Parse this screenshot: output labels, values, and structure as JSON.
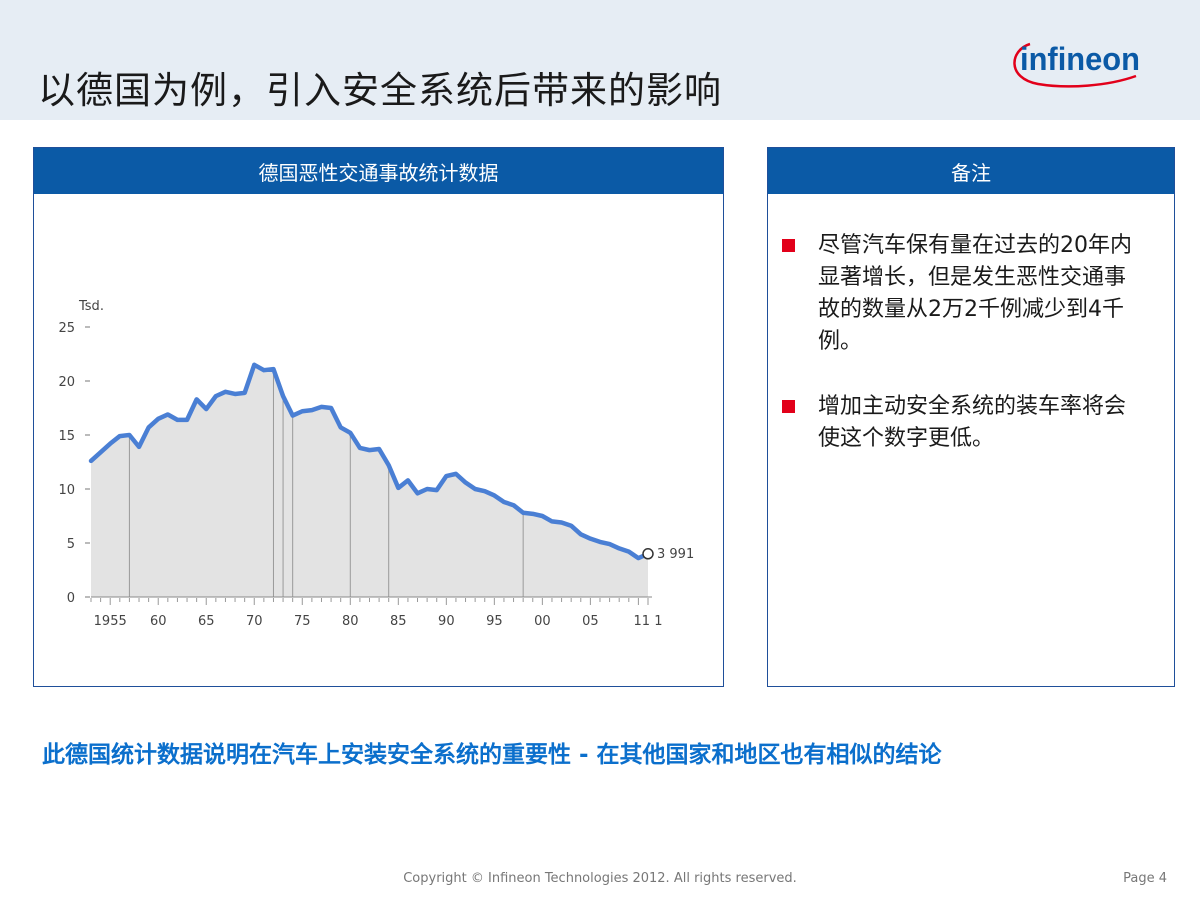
{
  "header": {
    "title": "以德国为例，引入安全系统后带来的影响"
  },
  "logo": {
    "text": "infineon",
    "color": "#0b5aa6",
    "accent": "#e2001a"
  },
  "left_panel": {
    "title": "德国恶性交通事故统计数据"
  },
  "right_panel": {
    "title": "备注",
    "notes": [
      "尽管汽车保有量在过去的20年内显著增长，但是发生恶性交通事故的数量从2万2千例减少到4千例。",
      "增加主动安全系统的装车率将会使这个数字更低。"
    ]
  },
  "conclusion": "此德国统计数据说明在汽车上安装安全系统的重要性 -  在其他国家和地区也有相似的结论",
  "footer": {
    "copyright": "Copyright © Infineon Technologies 2012. All rights reserved.",
    "page": "Page 4"
  },
  "colors": {
    "primary": "#0b5aa6",
    "line": "#4a7fd4",
    "bullet": "#e2001a",
    "fill": "#e3e3e3"
  },
  "chart_data": {
    "type": "area",
    "ylabel": "Tsd.",
    "ylim": [
      0,
      25
    ],
    "yticks": [
      "0",
      "5",
      "10",
      "15",
      "20",
      "25"
    ],
    "xlim": [
      1953,
      2011
    ],
    "xtick_labels": [
      "1955",
      "60",
      "65",
      "70",
      "75",
      "80",
      "85",
      "90",
      "95",
      "00",
      "05",
      "11 1"
    ],
    "xtick_years": [
      1955,
      1960,
      1965,
      1970,
      1975,
      1980,
      1985,
      1990,
      1995,
      2000,
      2005,
      2011
    ],
    "end_label": "3 991",
    "series": [
      {
        "x": [
          1953,
          1954,
          1955,
          1956,
          1957,
          1958,
          1959,
          1960,
          1961,
          1962,
          1963,
          1964,
          1965,
          1966,
          1967,
          1968,
          1969,
          1970,
          1971,
          1972,
          1973,
          1974,
          1975,
          1976,
          1977,
          1978,
          1979,
          1980,
          1981,
          1982,
          1983,
          1984,
          1985,
          1986,
          1987,
          1988,
          1989,
          1990,
          1991,
          1992,
          1993,
          1994,
          1995,
          1996,
          1997,
          1998,
          1999,
          2000,
          2001,
          2002,
          2003,
          2004,
          2005,
          2006,
          2007,
          2008,
          2009,
          2010,
          2011
        ],
        "values": [
          12.6,
          13.4,
          14.2,
          14.9,
          15.0,
          13.9,
          15.7,
          16.5,
          16.9,
          16.4,
          16.4,
          18.3,
          17.4,
          18.6,
          19.0,
          18.8,
          18.9,
          21.5,
          21.0,
          21.1,
          18.6,
          16.8,
          17.2,
          17.3,
          17.6,
          17.5,
          15.7,
          15.2,
          13.8,
          13.6,
          13.7,
          12.2,
          10.1,
          10.8,
          9.6,
          10.0,
          9.9,
          11.2,
          11.4,
          10.6,
          10.0,
          9.8,
          9.4,
          8.8,
          8.5,
          7.8,
          7.7,
          7.5,
          7.0,
          6.9,
          6.6,
          5.8,
          5.4,
          5.1,
          4.9,
          4.5,
          4.2,
          3.6,
          4.0
        ]
      }
    ]
  }
}
